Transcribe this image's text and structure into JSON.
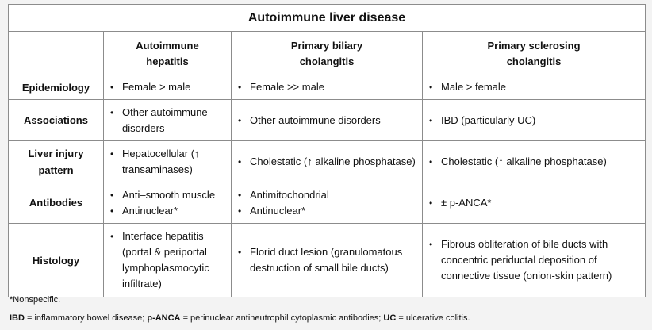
{
  "table": {
    "title": "Autoimmune liver disease",
    "columns": [
      "",
      "Autoimmune hepatitis",
      "Primary biliary cholangitis",
      "Primary sclerosing cholangitis"
    ],
    "rows": [
      {
        "label": "Epidemiology",
        "cells": [
          [
            "Female > male"
          ],
          [
            "Female >> male"
          ],
          [
            "Male > female"
          ]
        ]
      },
      {
        "label": "Associations",
        "cells": [
          [
            "Other autoimmune disorders"
          ],
          [
            "Other autoimmune disorders"
          ],
          [
            "IBD (particularly UC)"
          ]
        ]
      },
      {
        "label": "Liver injury pattern",
        "cells": [
          [
            "Hepatocellular (↑ transaminases)"
          ],
          [
            "Cholestatic (↑ alkaline phosphatase)"
          ],
          [
            "Cholestatic (↑ alkaline phosphatase)"
          ]
        ]
      },
      {
        "label": "Antibodies",
        "cells": [
          [
            "Anti–smooth muscle",
            "Antinuclear*"
          ],
          [
            "Antimitochondrial",
            "Antinuclear*"
          ],
          [
            "± p-ANCA*"
          ]
        ]
      },
      {
        "label": "Histology",
        "cells": [
          [
            "Interface hepatitis (portal & periportal lymphoplasmocytic infiltrate)"
          ],
          [
            "Florid duct lesion (granulomatous destruction of small bile ducts)"
          ],
          [
            "Fibrous obliteration of bile ducts with concentric periductal deposition of connective tissue (onion-skin pattern)"
          ]
        ]
      }
    ]
  },
  "footnotes": {
    "nonspecific": "*Nonspecific.",
    "abbr": [
      {
        "term": "IBD",
        "def": " = inflammatory bowel disease; "
      },
      {
        "term": "p-ANCA",
        "def": " = perinuclear antineutrophil cytoplasmic antibodies; "
      },
      {
        "term": "UC",
        "def": " = ulcerative colitis."
      }
    ]
  }
}
